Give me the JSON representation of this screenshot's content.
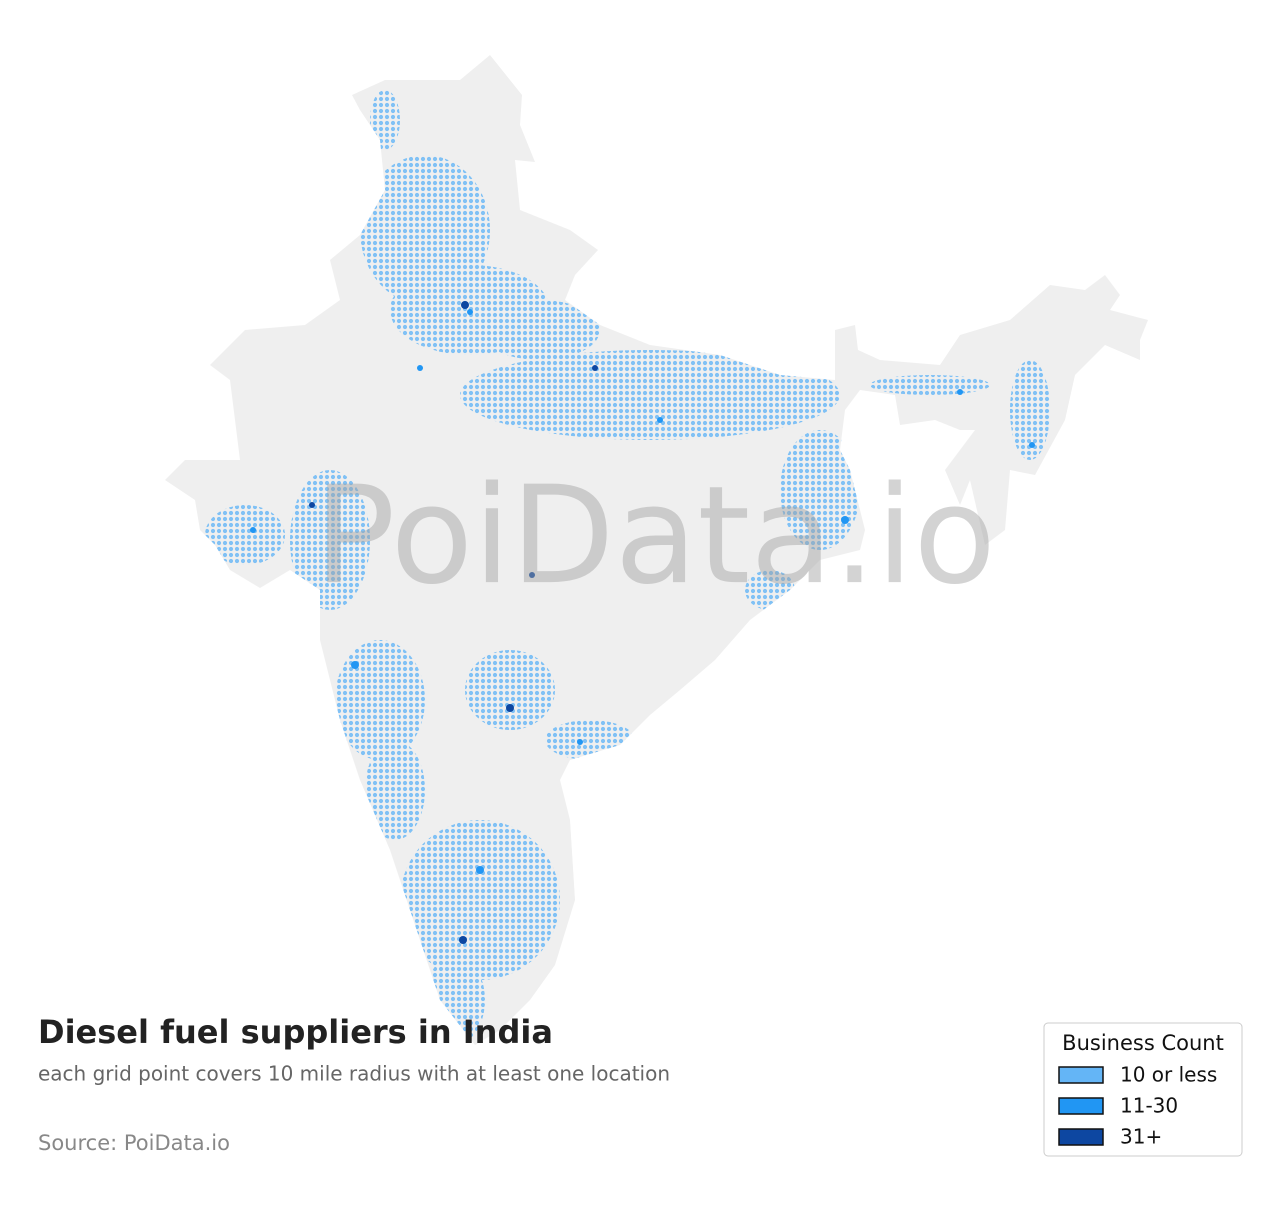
{
  "title": "Diesel fuel suppliers in India",
  "subtitle": "each grid point covers 10 mile radius with at least one location",
  "source": "Source: PoiData.io",
  "watermark": "PoiData.io",
  "legend": {
    "title": "Business Count",
    "items": [
      {
        "label": "10 or less",
        "color": "#64b5f6"
      },
      {
        "label": "11-30",
        "color": "#2196f3"
      },
      {
        "label": "31+",
        "color": "#0d47a1"
      }
    ]
  }
}
